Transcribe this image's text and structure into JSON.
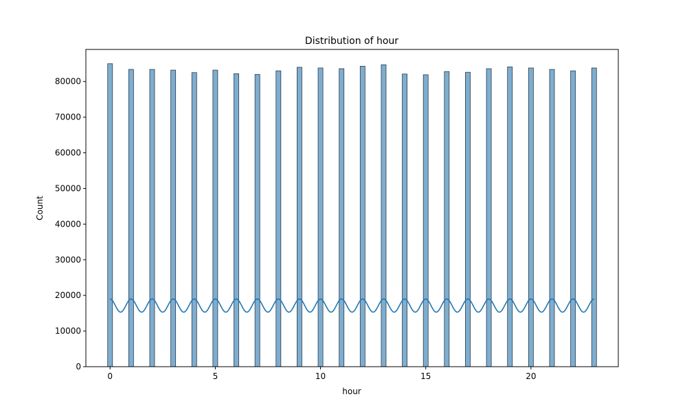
{
  "chart_data": {
    "type": "bar",
    "title": "Distribution of hour",
    "xlabel": "hour",
    "ylabel": "Count",
    "xlim": [
      -1.15,
      24.15
    ],
    "ylim": [
      0,
      89000
    ],
    "x_ticks": [
      0,
      5,
      10,
      15,
      20
    ],
    "y_ticks": [
      0,
      10000,
      20000,
      30000,
      40000,
      50000,
      60000,
      70000,
      80000
    ],
    "x": [
      0,
      1,
      2,
      3,
      4,
      5,
      6,
      7,
      8,
      9,
      10,
      11,
      12,
      13,
      14,
      15,
      16,
      17,
      18,
      19,
      20,
      21,
      22,
      23
    ],
    "values": [
      85000,
      83400,
      83400,
      83200,
      82500,
      83200,
      82200,
      82000,
      83000,
      84000,
      83800,
      83600,
      84300,
      84700,
      82100,
      81900,
      82800,
      82600,
      83600,
      84100,
      83800,
      83400,
      83000,
      83800
    ],
    "kde": {
      "peak": 19000,
      "trough": 15300
    },
    "grid": false,
    "colors": {
      "bar_fill": "#7eadcf",
      "bar_stroke": "#2b3a48",
      "kde_line": "#1f77b4"
    }
  }
}
